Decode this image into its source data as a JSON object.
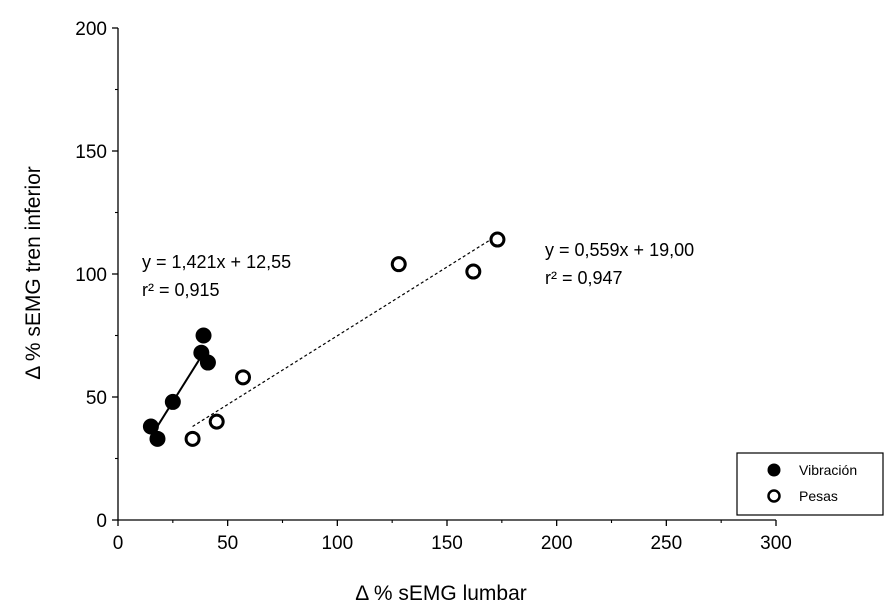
{
  "chart_data": {
    "type": "scatter",
    "xlabel": "Δ % sEMG lumbar",
    "ylabel": "Δ % sEMG tren inferior",
    "xlim": [
      0,
      300
    ],
    "ylim": [
      0,
      200
    ],
    "xticks": [
      0,
      50,
      100,
      150,
      200,
      250,
      300
    ],
    "yticks": [
      0,
      50,
      100,
      150,
      200
    ],
    "grid": false,
    "legend_position": "bottom-right",
    "series": [
      {
        "name": "Vibración",
        "marker": "filled-circle",
        "color": "#000000",
        "points": [
          {
            "x": 15,
            "y": 38
          },
          {
            "x": 18,
            "y": 33
          },
          {
            "x": 25,
            "y": 48
          },
          {
            "x": 38,
            "y": 68
          },
          {
            "x": 39,
            "y": 75
          },
          {
            "x": 41,
            "y": 64
          }
        ],
        "fit": {
          "slope": 1.421,
          "intercept": 12.55,
          "x_range": [
            16,
            39
          ],
          "line_style": "solid",
          "equation": "y = 1,421x + 12,55",
          "r2": "r² = 0,915"
        }
      },
      {
        "name": "Pesas",
        "marker": "open-circle",
        "color": "#000000",
        "points": [
          {
            "x": 34,
            "y": 33
          },
          {
            "x": 45,
            "y": 40
          },
          {
            "x": 57,
            "y": 58
          },
          {
            "x": 128,
            "y": 104
          },
          {
            "x": 162,
            "y": 101
          },
          {
            "x": 173,
            "y": 114
          }
        ],
        "fit": {
          "slope": 0.559,
          "intercept": 19.0,
          "x_range": [
            34,
            173
          ],
          "line_style": "dotted",
          "equation": "y = 0,559x + 19,00",
          "r2": "r² = 0,947"
        }
      }
    ]
  }
}
